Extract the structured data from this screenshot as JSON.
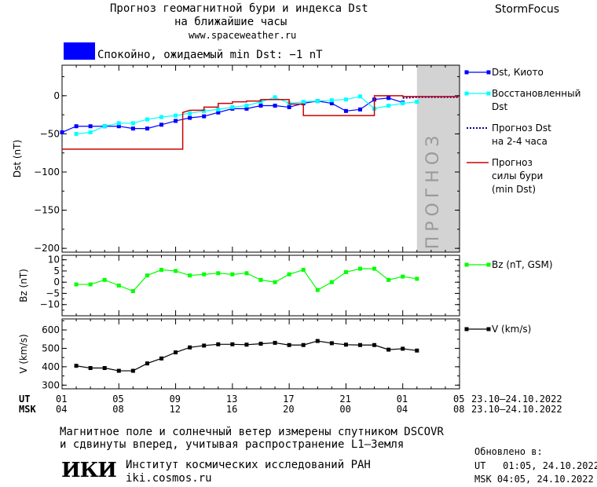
{
  "header": {
    "title_line1": "Прогноз геомагнитной бури и индекса Dst",
    "title_line2": "на ближайшие часы",
    "url": "www.spaceweather.ru",
    "brand": "StormFocus",
    "status_text": "Спокойно, ожидаемый min Dst: −1 nT",
    "status_color": "#0000ff"
  },
  "chart_data": [
    {
      "type": "line",
      "title": "",
      "ylabel": "Dst (nT)",
      "ylim": [
        -205,
        40
      ],
      "yticks": [
        0,
        -50,
        -100,
        -150,
        -200
      ],
      "xlim": [
        0,
        28
      ],
      "forecast_region": [
        25,
        28
      ],
      "forecast_label": "прогноз",
      "series": [
        {
          "name": "Dst, Киото",
          "color": "#0000ff",
          "marker": "square",
          "x": [
            0,
            1,
            2,
            3,
            4,
            5,
            6,
            7,
            8,
            9,
            10,
            11,
            12,
            13,
            14,
            15,
            16,
            17,
            18,
            19,
            20,
            21,
            22,
            23,
            24
          ],
          "y": [
            -48,
            -40,
            -40,
            -40,
            -40,
            -43,
            -43,
            -38,
            -33,
            -29,
            -27,
            -22,
            -17,
            -17,
            -13,
            -13,
            -15,
            -10,
            -7,
            -10,
            -20,
            -18,
            -5,
            -3,
            -9
          ]
        },
        {
          "name": "Восстановленный Dst",
          "color": "#00ffff",
          "marker": "square",
          "x": [
            1,
            2,
            3,
            4,
            5,
            6,
            7,
            8,
            9,
            10,
            11,
            12,
            13,
            14,
            15,
            16,
            17,
            18,
            19,
            20,
            21,
            22,
            23,
            24,
            25
          ],
          "y": [
            -50,
            -48,
            -40,
            -36,
            -36,
            -31,
            -28,
            -26,
            -23,
            -20,
            -18,
            -15,
            -13,
            -8,
            -2,
            -10,
            -8,
            -7,
            -6,
            -5,
            -1,
            -17,
            -13,
            -10,
            -8
          ]
        },
        {
          "name": "Прогноз Dst на 2-4 часа",
          "color": "#0000aa",
          "dashed": true,
          "x": [
            24,
            25,
            28
          ],
          "y": [
            -3,
            -2,
            -2
          ]
        },
        {
          "name": "Прогноз силы бури (min Dst)",
          "color": "#cc0000",
          "step": true,
          "x": [
            0,
            7.5,
            8.5,
            9,
            10,
            11,
            12,
            13,
            14,
            15,
            16,
            17,
            18,
            19,
            20,
            21,
            22,
            23,
            24,
            25,
            28
          ],
          "y": [
            -70,
            -70,
            -22,
            -19,
            -15,
            -10,
            -8,
            -7,
            -5,
            -5,
            -11,
            -26,
            -26,
            -26,
            -26,
            -26,
            0,
            0,
            -1,
            -1,
            -1
          ]
        }
      ]
    },
    {
      "type": "line",
      "ylabel": "Bz (nT)",
      "ylim": [
        -15,
        12
      ],
      "yticks": [
        10,
        5,
        0,
        -5,
        -10
      ],
      "series": [
        {
          "name": "Bz (nT, GSM)",
          "color": "#00ff00",
          "marker": "square",
          "x": [
            1,
            2,
            3,
            4,
            5,
            6,
            7,
            8,
            9,
            10,
            11,
            12,
            13,
            14,
            15,
            16,
            17,
            18,
            19,
            20,
            21,
            22,
            23,
            24,
            25
          ],
          "y": [
            -1,
            -1,
            1,
            -1.5,
            -4,
            3,
            5.5,
            5,
            3,
            3.5,
            4,
            3.5,
            4,
            1,
            0,
            3.5,
            5.5,
            -3.5,
            0,
            4.5,
            6,
            6,
            1,
            2.5,
            1.5
          ]
        }
      ]
    },
    {
      "type": "line",
      "ylabel": "V (km/s)",
      "ylim": [
        280,
        660
      ],
      "yticks": [
        600,
        500,
        400,
        300
      ],
      "series": [
        {
          "name": "V (km/s)",
          "color": "#000000",
          "marker": "square",
          "x": [
            1,
            2,
            3,
            4,
            5,
            6,
            7,
            8,
            9,
            10,
            11,
            12,
            13,
            14,
            15,
            16,
            17,
            18,
            19,
            20,
            21,
            22,
            23,
            24,
            25
          ],
          "y": [
            405,
            393,
            393,
            378,
            378,
            418,
            445,
            478,
            505,
            515,
            522,
            522,
            520,
            525,
            530,
            518,
            518,
            540,
            528,
            520,
            518,
            518,
            493,
            498,
            488
          ]
        }
      ]
    }
  ],
  "time_axis": {
    "ut_label": "UT",
    "msk_label": "MSK",
    "ut_ticks": [
      "01",
      "05",
      "09",
      "13",
      "17",
      "21",
      "01",
      "05"
    ],
    "msk_ticks": [
      "04",
      "08",
      "12",
      "16",
      "20",
      "00",
      "04",
      "08"
    ],
    "ut_range": "23.10–24.10.2022",
    "msk_range": "23.10–24.10.2022"
  },
  "footer": {
    "note_line1": "Магнитное поле и солнечный ветер измерены спутником DSCOVR",
    "note_line2": "и сдвинуты вперед, учитывая распространение L1–Земля",
    "institute_logo": "ИКИ",
    "institute_name": "Институт космических исследований РАН",
    "institute_url": "iki.cosmos.ru",
    "updated_label": "Обновлено в:",
    "updated_ut": "UT   01:05, 24.10.2022",
    "updated_msk": "MSK 04:05, 24.10.2022"
  }
}
